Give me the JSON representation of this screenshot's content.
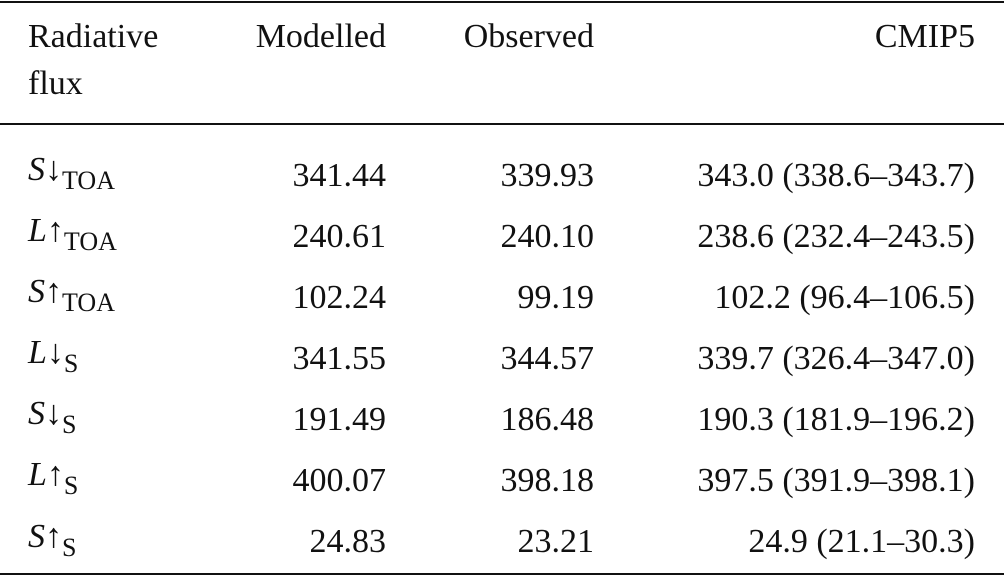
{
  "table": {
    "header": [
      "Radiative flux",
      "Modelled",
      "Observed",
      "CMIP5"
    ],
    "rows": [
      {
        "symbol": "S",
        "arrow": "↓",
        "sub": "TOA",
        "cells": [
          "341.44",
          "339.93",
          "343.0 (338.6–343.7)"
        ]
      },
      {
        "symbol": "L",
        "arrow": "↑",
        "sub": "TOA",
        "cells": [
          "240.61",
          "240.10",
          "238.6 (232.4–243.5)"
        ]
      },
      {
        "symbol": "S",
        "arrow": "↑",
        "sub": "TOA",
        "cells": [
          "102.24",
          "99.19",
          "102.2 (96.4–106.5)"
        ]
      },
      {
        "symbol": "L",
        "arrow": "↓",
        "sub": "S",
        "cells": [
          "341.55",
          "344.57",
          "339.7 (326.4–347.0)"
        ]
      },
      {
        "symbol": "S",
        "arrow": "↓",
        "sub": "S",
        "cells": [
          "191.49",
          "186.48",
          "190.3 (181.9–196.2)"
        ]
      },
      {
        "symbol": "L",
        "arrow": "↑",
        "sub": "S",
        "cells": [
          "400.07",
          "398.18",
          "397.5 (391.9–398.1)"
        ]
      },
      {
        "symbol": "S",
        "arrow": "↑",
        "sub": "S",
        "cells": [
          "24.83",
          "23.21",
          "24.9 (21.1–30.3)"
        ]
      }
    ]
  }
}
